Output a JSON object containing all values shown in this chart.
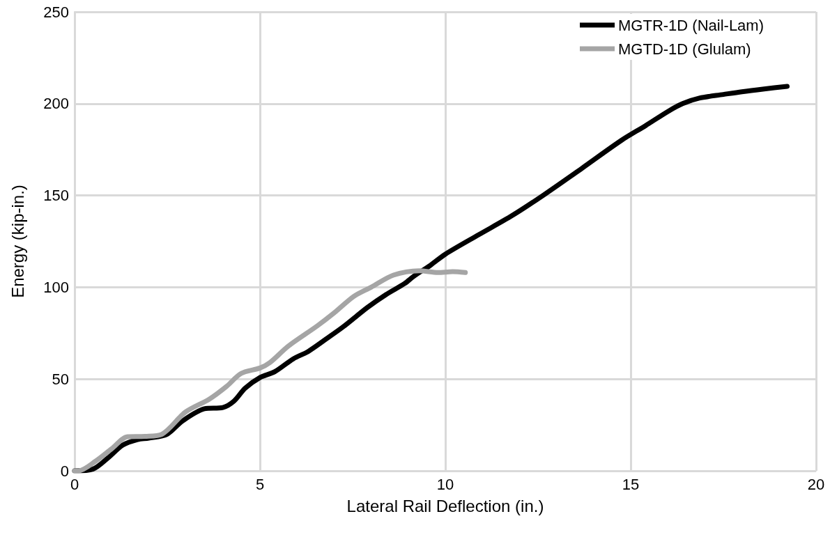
{
  "chart_data": {
    "type": "line",
    "xlabel": "Lateral Rail Deflection (in.)",
    "ylabel": "Energy (kip-in.)",
    "xlim": [
      0,
      20
    ],
    "xticks": [
      0,
      5,
      10,
      15,
      20
    ],
    "ylim": [
      0,
      250
    ],
    "yticks": [
      0,
      50,
      100,
      150,
      200,
      250
    ],
    "grid": true,
    "legend": "top right",
    "marker": "none",
    "line_style": "solid",
    "series": [
      {
        "name": "MGTR-1D (Nail-Lam)",
        "color": "#000000",
        "x": [
          0,
          0.5,
          0.9,
          1.3,
          1.7,
          2.0,
          2.5,
          2.9,
          3.5,
          4.0,
          4.3,
          4.6,
          5.0,
          5.4,
          5.9,
          6.3,
          6.8,
          7.25,
          7.9,
          8.4,
          8.9,
          9.15,
          9.6,
          10.0,
          10.9,
          11.8,
          12.65,
          13.7,
          14.75,
          15.4,
          16.0,
          16.4,
          16.85,
          17.5,
          18.0,
          18.6,
          19.22
        ],
        "values": [
          0,
          1,
          7,
          14,
          17,
          17.8,
          20,
          27,
          33.8,
          34.5,
          38,
          45,
          50.8,
          54,
          61,
          65,
          72,
          78.5,
          89,
          96,
          102,
          106,
          112,
          118,
          128.6,
          139,
          150.2,
          165,
          180,
          188,
          195.7,
          200,
          203,
          205,
          206.5,
          208,
          209.4
        ]
      },
      {
        "name": "MGTD-1D (Glulam)",
        "color": "#a5a5a5",
        "x": [
          0,
          0.1,
          0.57,
          1.0,
          1.43,
          1.9,
          2.36,
          2.99,
          3.63,
          4.1,
          4.49,
          5.0,
          5.27,
          5.77,
          6.55,
          7.0,
          7.53,
          8.0,
          8.6,
          9.3,
          9.8,
          10.2,
          10.54
        ],
        "values": [
          0,
          0,
          5.3,
          12,
          18.6,
          18.8,
          20,
          32,
          39,
          46,
          53,
          56,
          59,
          68,
          79,
          86,
          95,
          100,
          106.6,
          109,
          108,
          108.5,
          108
        ]
      }
    ]
  }
}
